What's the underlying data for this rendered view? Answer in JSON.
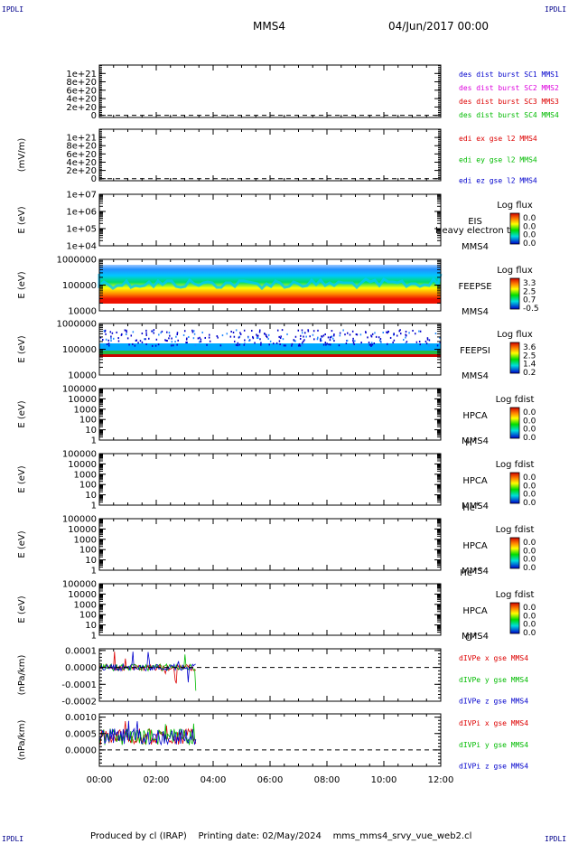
{
  "corner_label": "IPDLI",
  "header": {
    "spacecraft": "MMS4",
    "datetime": "04/Jun/2017 00:00"
  },
  "footer": {
    "produced_by": "Produced by cl (IRAP)",
    "printing_date": "Printing date: 02/May/2024",
    "script": "mms_mms4_srvy_vue_web2.cl"
  },
  "colors": {
    "blue": "#0000cc",
    "magenta": "#dd00dd",
    "red": "#dd0000",
    "green": "#00bb00"
  },
  "chart_data": [
    {
      "type": "line",
      "ylabel": "",
      "ylim": [
        -5e+19,
        1.2e+21
      ],
      "yticks": [
        "1e+21",
        "8e+20",
        "6e+20",
        "4e+20",
        "2e+20",
        "0"
      ],
      "ytick_values": [
        1e+21,
        8e+20,
        6e+20,
        4e+20,
        2e+20,
        0
      ],
      "zero_line": true,
      "legend": [
        {
          "name": "des dist burst SC1 MMS1",
          "color": "#0000cc"
        },
        {
          "name": "des dist burst SC2 MMS2",
          "color": "#dd00dd"
        },
        {
          "name": "des dist burst SC3 MMS3",
          "color": "#dd0000"
        },
        {
          "name": "des dist burst SC4 MMS4",
          "color": "#00bb00"
        }
      ]
    },
    {
      "type": "line",
      "ylabel": "(mV/m)",
      "ylim": [
        -5e+19,
        1.2e+21
      ],
      "yticks": [
        "1e+21",
        "8e+20",
        "6e+20",
        "4e+20",
        "2e+20",
        "0"
      ],
      "ytick_values": [
        1e+21,
        8e+20,
        6e+20,
        4e+20,
        2e+20,
        0
      ],
      "zero_line": true,
      "legend": [
        {
          "name": "edi ex gse l2 MMS4",
          "color": "#dd0000"
        },
        {
          "name": "edi ey gse l2 MMS4",
          "color": "#00bb00"
        },
        {
          "name": "edi ez gse l2 MMS4",
          "color": "#0000cc"
        }
      ]
    },
    {
      "type": "heatmap",
      "ylabel": "E (eV)",
      "yscale": "log",
      "ylim": [
        10000.0,
        10000000.0
      ],
      "yticks": [
        "1e+07",
        "1e+06",
        "1e+05",
        "1e+04"
      ],
      "ytick_values": [
        10000000.0,
        1000000.0,
        100000.0,
        10000.0
      ],
      "instrument": "EIS",
      "sc": "MMS4",
      "extra_text": "Heavy electron to",
      "colorbar_title": "Log flux",
      "colorbar_ticks": [
        "0.0",
        "0.0",
        "0.0",
        "0.0"
      ],
      "data": "none"
    },
    {
      "type": "heatmap",
      "ylabel": "E (eV)",
      "yscale": "log",
      "ylim": [
        10000.0,
        1000000.0
      ],
      "yticks": [
        "1000000",
        "100000",
        "10000"
      ],
      "ytick_values": [
        1000000.0,
        100000.0,
        10000.0
      ],
      "instrument": "FEEPSE",
      "sc": "MMS4",
      "colorbar_title": "Log flux",
      "colorbar_ticks": [
        "3.3",
        "2.5",
        "0.7",
        "-0.5"
      ],
      "data_x_range": [
        "00:00",
        "12:00"
      ],
      "data": "full"
    },
    {
      "type": "heatmap",
      "ylabel": "E (eV)",
      "yscale": "log",
      "ylim": [
        10000.0,
        1000000.0
      ],
      "yticks": [
        "1000000",
        "100000",
        "10000"
      ],
      "ytick_values": [
        1000000.0,
        100000.0,
        10000.0
      ],
      "instrument": "FEEPSI",
      "sc": "MMS4",
      "colorbar_title": "Log flux",
      "colorbar_ticks": [
        "3.6",
        "2.5",
        "1.4",
        "0.2"
      ],
      "data_x_range": [
        "00:00",
        "12:00"
      ],
      "data": "sparse"
    },
    {
      "type": "heatmap",
      "ylabel": "E (eV)",
      "yscale": "log",
      "ylim": [
        1,
        100000.0
      ],
      "yticks": [
        "100000",
        "10000",
        "1000",
        "100",
        "10",
        "1"
      ],
      "ytick_values": [
        100000.0,
        10000.0,
        1000.0,
        100.0,
        10,
        1
      ],
      "instrument": "HPCA",
      "sc": "MMS4",
      "species": "H",
      "species_charge": "+",
      "colorbar_title": "Log fdist",
      "colorbar_ticks": [
        "0.0",
        "0.0",
        "0.0",
        "0.0"
      ],
      "data": "none"
    },
    {
      "type": "heatmap",
      "ylabel": "E (eV)",
      "yscale": "log",
      "ylim": [
        1,
        100000.0
      ],
      "yticks": [
        "100000",
        "10000",
        "1000",
        "100",
        "10",
        "1"
      ],
      "ytick_values": [
        100000.0,
        10000.0,
        1000.0,
        100.0,
        10,
        1
      ],
      "instrument": "HPCA",
      "sc": "MMS4",
      "species": "He",
      "species_charge": "+",
      "colorbar_title": "Log fdist",
      "colorbar_ticks": [
        "0.0",
        "0.0",
        "0.0",
        "0.0"
      ],
      "data": "none"
    },
    {
      "type": "heatmap",
      "ylabel": "E (eV)",
      "yscale": "log",
      "ylim": [
        1,
        100000.0
      ],
      "yticks": [
        "100000",
        "10000",
        "1000",
        "100",
        "10",
        "1"
      ],
      "ytick_values": [
        100000.0,
        10000.0,
        1000.0,
        100.0,
        10,
        1
      ],
      "instrument": "HPCA",
      "sc": "MMS4",
      "species": "He",
      "species_charge": "++",
      "colorbar_title": "Log fdist",
      "colorbar_ticks": [
        "0.0",
        "0.0",
        "0.0",
        "0.0"
      ],
      "data": "none"
    },
    {
      "type": "heatmap",
      "ylabel": "E (eV)",
      "yscale": "log",
      "ylim": [
        1,
        100000.0
      ],
      "yticks": [
        "100000",
        "10000",
        "1000",
        "100",
        "10",
        "1"
      ],
      "ytick_values": [
        100000.0,
        10000.0,
        1000.0,
        100.0,
        10,
        1
      ],
      "instrument": "HPCA",
      "sc": "MMS4",
      "species": "O",
      "species_charge": "+",
      "colorbar_title": "Log fdist",
      "colorbar_ticks": [
        "0.0",
        "0.0",
        "0.0",
        "0.0"
      ],
      "data": "none"
    },
    {
      "type": "line",
      "ylabel": "(nPa/km)",
      "ylim": [
        -0.0002,
        0.00011
      ],
      "yticks": [
        "0.0001",
        "0.0000",
        "-0.0001",
        "-0.0002"
      ],
      "ytick_values": [
        0.0001,
        0,
        -0.0001,
        -0.0002
      ],
      "zero_line": true,
      "data_x_range": [
        "00:00",
        "03:25"
      ],
      "noise": {
        "center": 0.0,
        "amplitude": 2e-05,
        "spike_max": 0.0001,
        "spike_min": -0.00015
      },
      "legend": [
        {
          "name": "dIVPe x gse MMS4",
          "color": "#dd0000"
        },
        {
          "name": "dIVPe y gse MMS4",
          "color": "#00bb00"
        },
        {
          "name": "dIVPe z gse MMS4",
          "color": "#0000cc"
        }
      ]
    },
    {
      "type": "line",
      "ylabel": "(nPa/km)",
      "ylim": [
        -0.0005,
        0.0011
      ],
      "yticks": [
        "0.0010",
        "0.0005",
        "0.0000"
      ],
      "ytick_values": [
        0.001,
        0.0005,
        0
      ],
      "zero_line": true,
      "data_x_range": [
        "00:00",
        "03:25"
      ],
      "noise": {
        "center": 0.0004,
        "amplitude": 0.00025,
        "spike_max": 0.00095,
        "spike_min": -0.0003
      },
      "legend": [
        {
          "name": "dIVPi x gse MMS4",
          "color": "#dd0000"
        },
        {
          "name": "dIVPi y gse MMS4",
          "color": "#00bb00"
        },
        {
          "name": "dIVPi z gse MMS4",
          "color": "#0000cc"
        }
      ]
    }
  ],
  "x_axis": {
    "ticks": [
      "00:00",
      "02:00",
      "04:00",
      "06:00",
      "08:00",
      "10:00",
      "12:00"
    ],
    "range_hours": [
      0,
      12
    ]
  }
}
